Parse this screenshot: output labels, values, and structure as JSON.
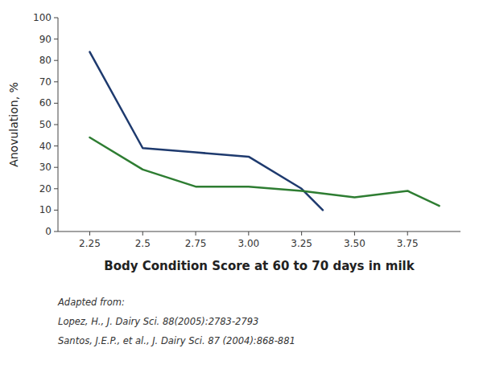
{
  "chart_data": {
    "type": "line",
    "x_label": "Body Condition Score at 60 to 70 days in milk",
    "y_label": "Anovulation, %",
    "annotations": [
      "Adapted from:",
      "Lopez, H., J. Dairy Sci. 88(2005):2783-2793",
      "Santos, J.E.P., et al., J. Dairy Sci. 87 (2004):868-881"
    ],
    "series": [
      {
        "color": "#1e3a6e",
        "x": [
          2.25,
          2.5,
          2.75,
          3.0,
          3.25,
          3.35
        ],
        "values": [
          84,
          39,
          37,
          35,
          20,
          10
        ]
      },
      {
        "color": "#2e7d32",
        "x": [
          2.25,
          2.5,
          2.75,
          3.0,
          3.25,
          3.5,
          3.75,
          3.9
        ],
        "values": [
          44,
          29,
          21,
          21,
          19,
          16,
          19,
          12
        ]
      }
    ],
    "xlim": [
      2.1,
      4.0
    ],
    "ylim": [
      0,
      100
    ],
    "xticks": [
      2.25,
      2.5,
      2.75,
      {
        "value": 3.0,
        "label": "3.00"
      },
      3.25,
      {
        "value": 3.5,
        "label": "3.50"
      },
      3.75
    ],
    "yticks": [
      0,
      10,
      20,
      30,
      40,
      50,
      60,
      70,
      80,
      90,
      100
    ],
    "grid": false
  }
}
